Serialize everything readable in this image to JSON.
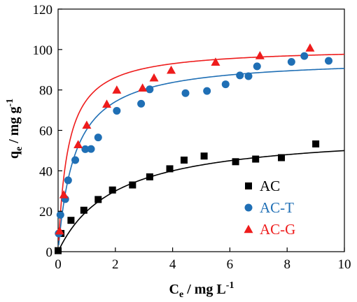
{
  "chart_data": {
    "type": "scatter",
    "x_axis": {
      "label_main": "C",
      "label_sub": "e",
      "label_rest": " / mg L",
      "label_sup": "-1",
      "range": [
        0,
        10
      ],
      "ticks": [
        "0",
        "2",
        "4",
        "6",
        "8",
        "10"
      ]
    },
    "y_axis": {
      "label_main": "q",
      "label_sub": "e",
      "label_rest": " / mg g",
      "label_sup": "-1",
      "range": [
        0,
        120
      ],
      "ticks": [
        "0",
        "20",
        "40",
        "60",
        "80",
        "100",
        "120"
      ]
    },
    "grid": false,
    "legend_position": "bottom-right",
    "series": [
      {
        "name": "AC",
        "marker": "square",
        "color": "#000000",
        "points": [
          [
            0.0,
            0.5
          ],
          [
            0.1,
            9
          ],
          [
            0.45,
            15.5
          ],
          [
            0.9,
            20.5
          ],
          [
            1.4,
            25.8
          ],
          [
            1.9,
            30.5
          ],
          [
            2.6,
            33
          ],
          [
            3.2,
            37
          ],
          [
            3.9,
            41
          ],
          [
            4.4,
            45.3
          ],
          [
            5.1,
            47.3
          ],
          [
            6.2,
            44.5
          ],
          [
            6.9,
            45.8
          ],
          [
            7.8,
            46.5
          ],
          [
            9.0,
            53.3
          ]
        ],
        "fit": {
          "qmax": 60,
          "K": 0.5
        }
      },
      {
        "name": "AC-T",
        "marker": "circle",
        "color": "#1f6fb5",
        "points": [
          [
            0.02,
            9
          ],
          [
            0.08,
            18.2
          ],
          [
            0.25,
            26
          ],
          [
            0.35,
            35.3
          ],
          [
            0.6,
            45.3
          ],
          [
            0.95,
            50.7
          ],
          [
            1.15,
            50.8
          ],
          [
            1.4,
            56.5
          ],
          [
            2.05,
            69.7
          ],
          [
            2.9,
            73.2
          ],
          [
            3.2,
            80.3
          ],
          [
            4.45,
            78.4
          ],
          [
            5.2,
            79.5
          ],
          [
            5.85,
            82.8
          ],
          [
            6.35,
            87.2
          ],
          [
            6.65,
            86.8
          ],
          [
            6.95,
            91.7
          ],
          [
            8.15,
            93.9
          ],
          [
            8.6,
            96.8
          ],
          [
            9.45,
            94.4
          ]
        ],
        "fit": {
          "qmax": 96,
          "K": 1.7
        }
      },
      {
        "name": "AC-G",
        "marker": "triangle",
        "color": "#ee1c1c",
        "points": [
          [
            0.05,
            10.3
          ],
          [
            0.2,
            28.2
          ],
          [
            0.7,
            53
          ],
          [
            1.0,
            62.6
          ],
          [
            1.7,
            73
          ],
          [
            2.05,
            80
          ],
          [
            2.95,
            81
          ],
          [
            3.35,
            86
          ],
          [
            3.95,
            89.8
          ],
          [
            5.5,
            93.8
          ],
          [
            7.05,
            97
          ],
          [
            8.8,
            100.8
          ]
        ],
        "fit": {
          "qmax": 101,
          "K": 2.9
        }
      }
    ]
  }
}
